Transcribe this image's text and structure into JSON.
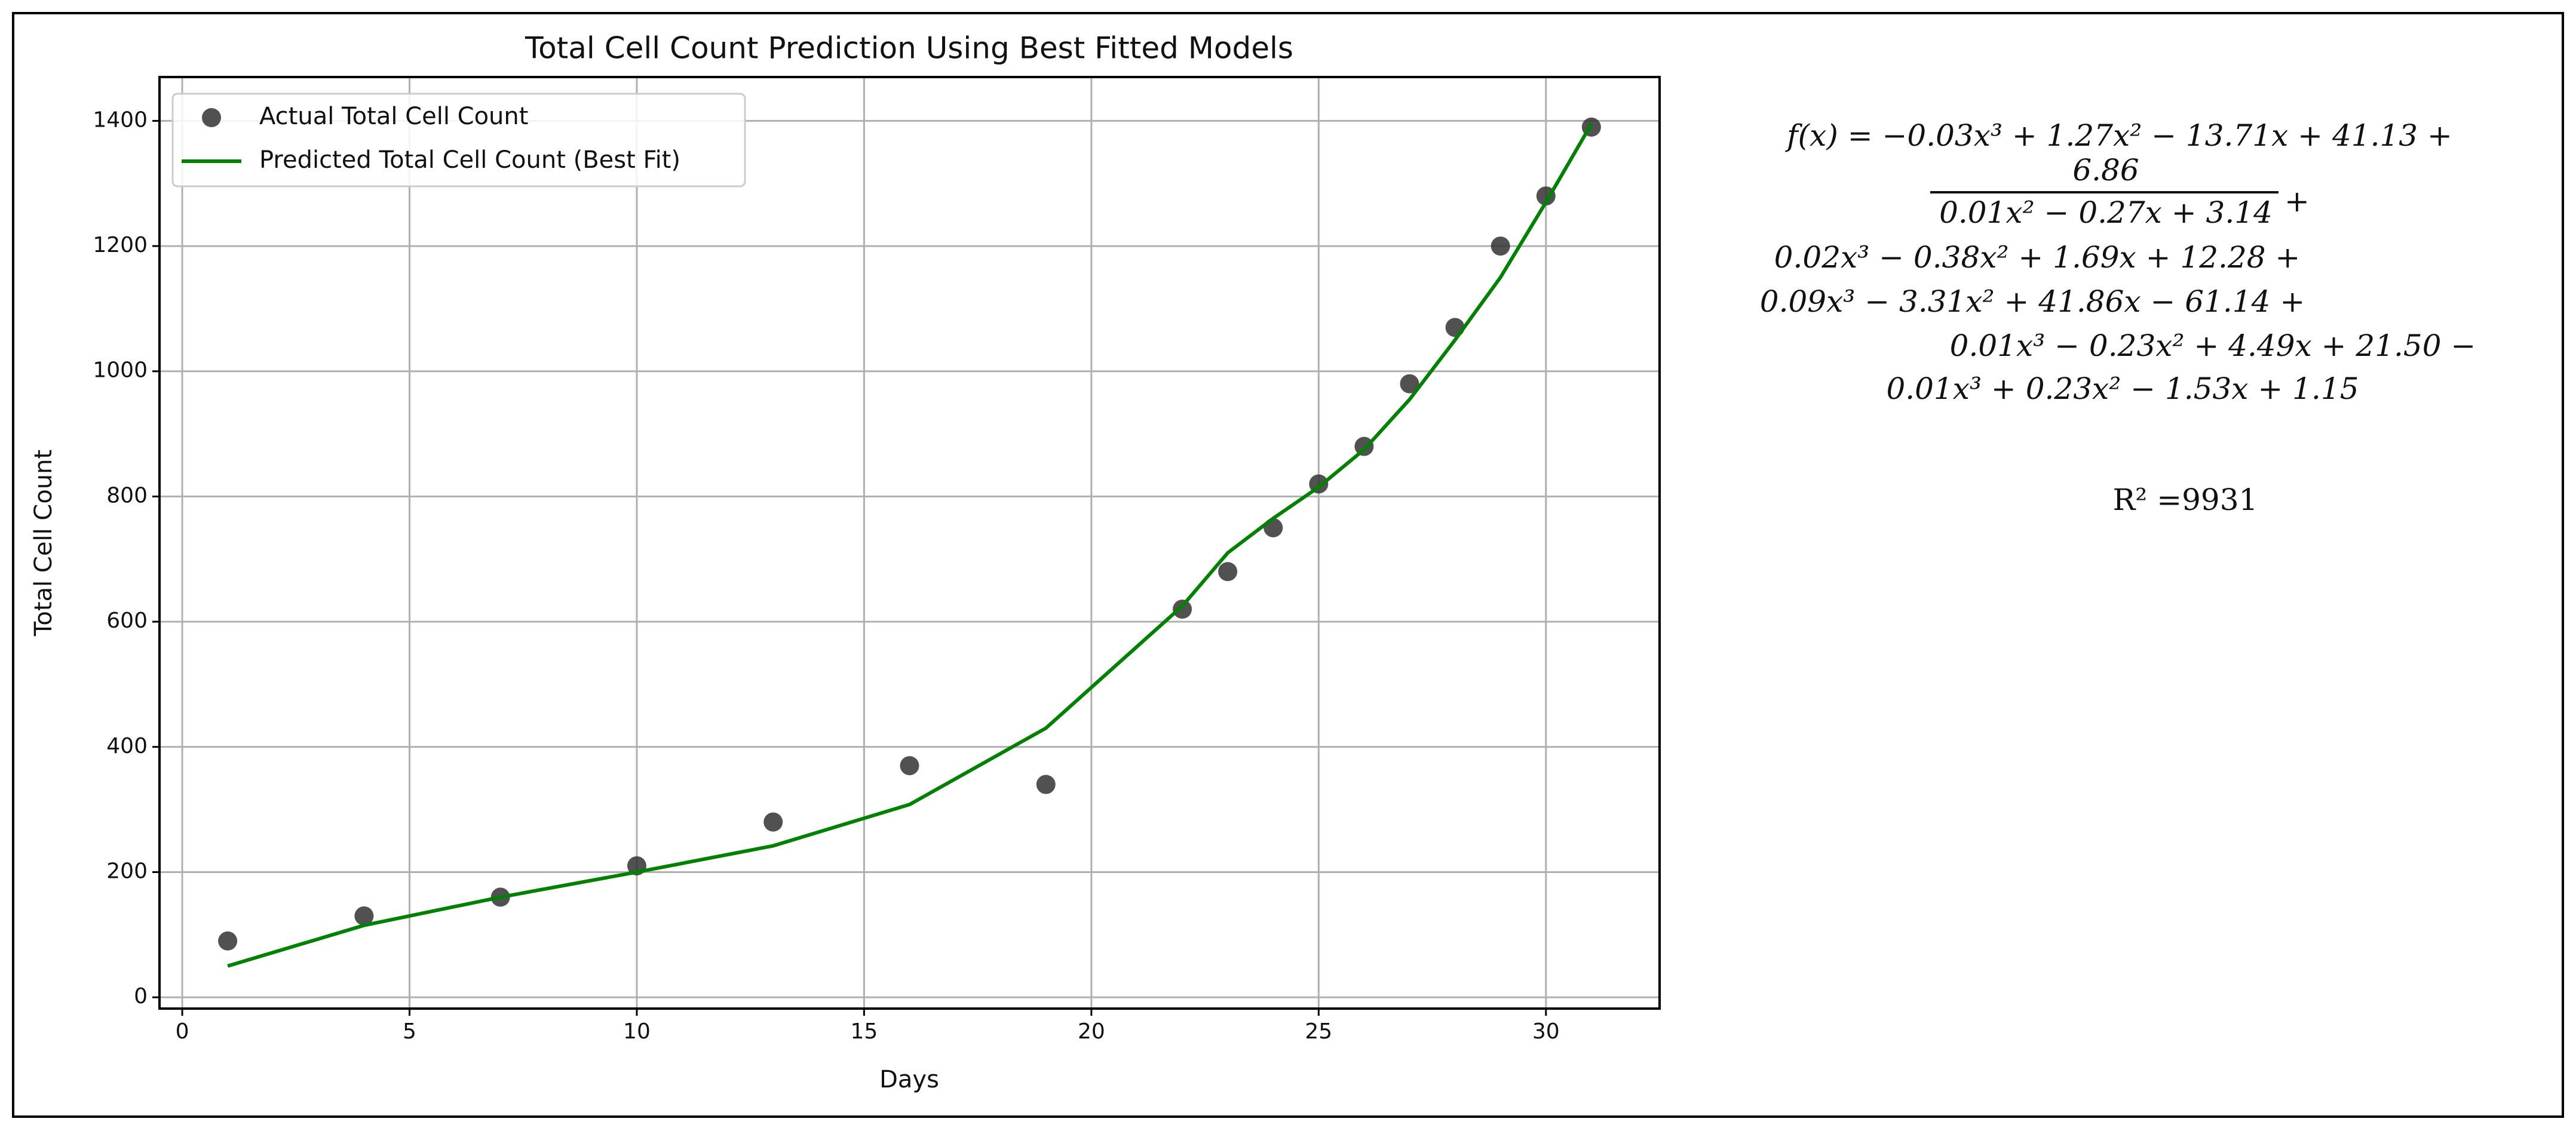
{
  "chart_data": {
    "type": "scatter",
    "title": "Total Cell Count Prediction Using Best Fitted Models",
    "x_label": "Days",
    "y_label": "Total Cell Count",
    "x": [
      1,
      4,
      7,
      10,
      13,
      16,
      19,
      22,
      23,
      24,
      25,
      26,
      27,
      28,
      29,
      30,
      31
    ],
    "series": [
      {
        "name": "Actual Total Cell Count",
        "type": "scatter",
        "color": "#333333",
        "values": [
          90,
          130,
          160,
          210,
          280,
          370,
          340,
          620,
          680,
          750,
          820,
          880,
          980,
          1070,
          1200,
          1280,
          1390
        ]
      },
      {
        "name": "Predicted Total Cell Count (Best Fit)",
        "type": "line",
        "color": "#008000",
        "values": [
          50,
          115,
          160,
          200,
          242,
          308,
          430,
          625,
          710,
          765,
          815,
          875,
          955,
          1050,
          1150,
          1270,
          1395
        ]
      }
    ],
    "xlim": [
      -0.5,
      32.5
    ],
    "ylim": [
      -18,
      1470
    ],
    "xticks": [
      0,
      5,
      10,
      15,
      20,
      25,
      30
    ],
    "yticks": [
      0,
      200,
      400,
      600,
      800,
      1000,
      1200,
      1400
    ],
    "grid": true,
    "legend": "upper left",
    "equation": {
      "lines": [
        "f(x) = −0.03x³ + 1.27x² − 13.71x + 41.13 +",
        "6.86",
        "0.01x² − 0.27x + 3.14",
        "+",
        "0.02x³ − 0.38x² + 1.69x + 12.28 +",
        "0.09x³ − 3.31x² + 41.86x − 61.14 +",
        "0.01x³ − 0.23x² + 4.49x + 21.50 −",
        "0.01x³ + 0.23x² − 1.53x + 1.15"
      ],
      "r2": "R² =9931"
    }
  }
}
